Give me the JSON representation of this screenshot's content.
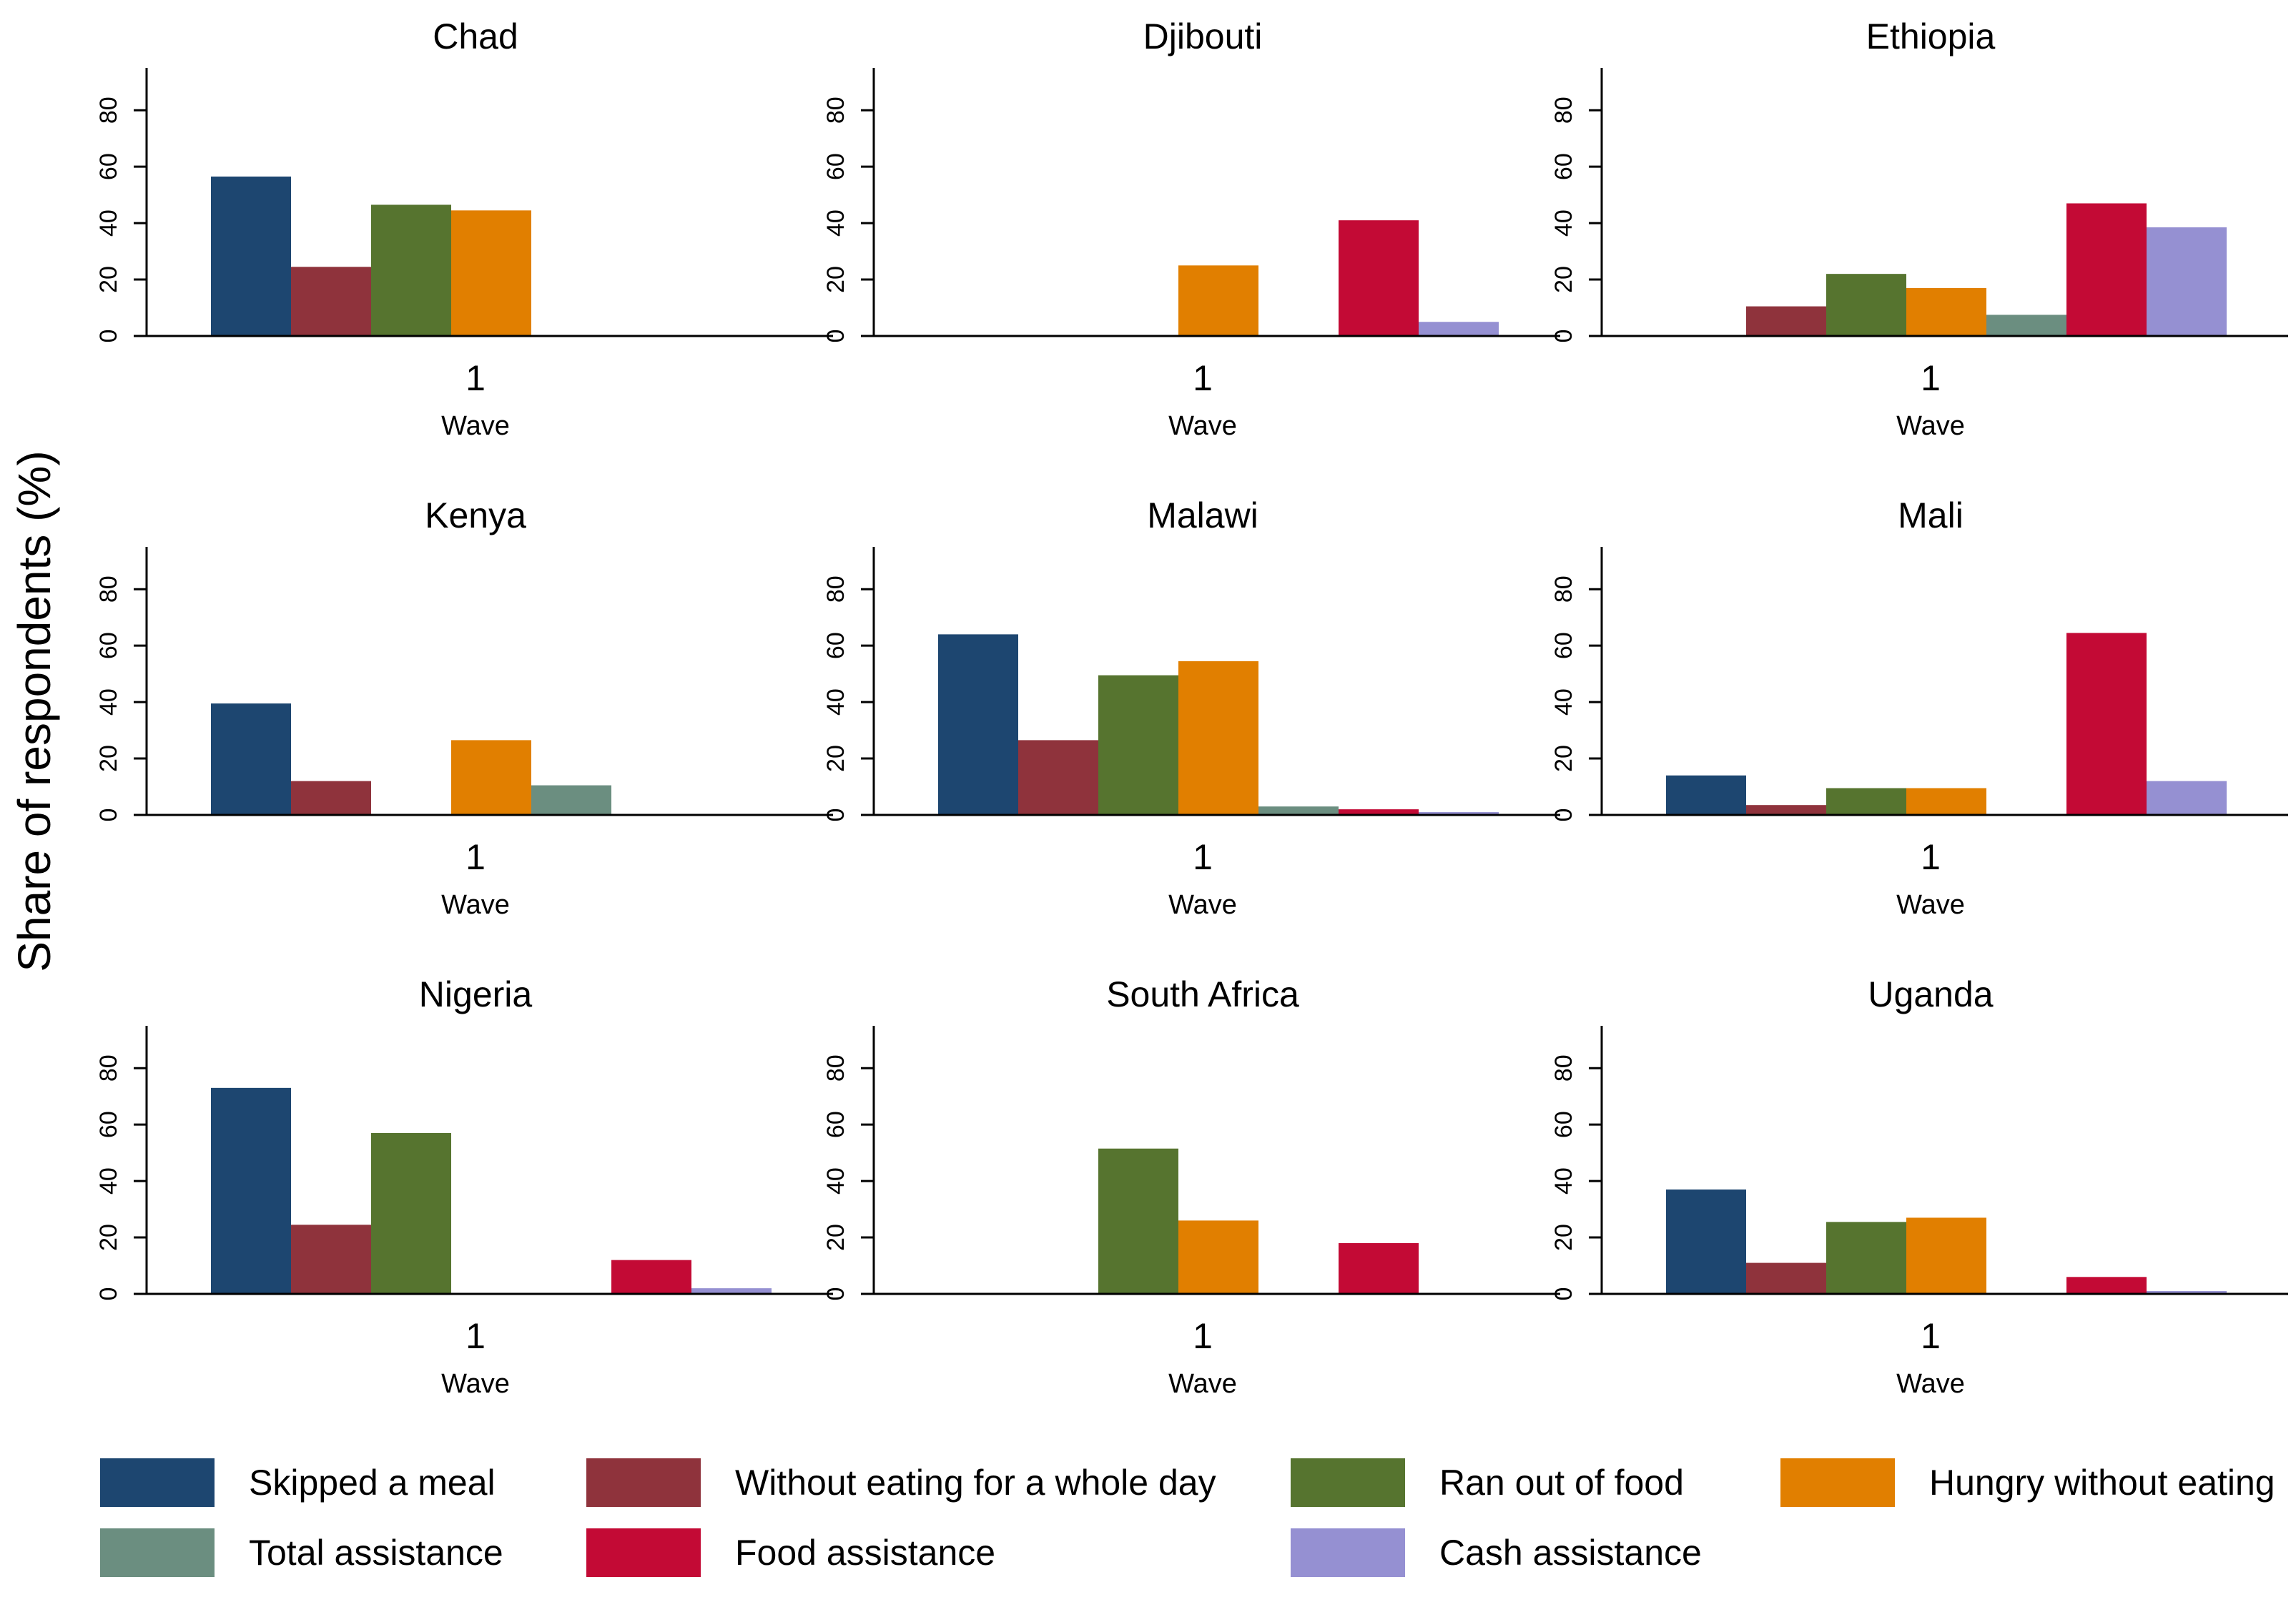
{
  "chart_data": {
    "type": "bar",
    "ylabel": "Share of respondents (%)",
    "xlabel": "Wave",
    "x_tick": "1",
    "ylim": [
      0,
      95
    ],
    "yticks": [
      "0",
      "20",
      "40",
      "60",
      "80"
    ],
    "grid": false,
    "legend_position": "bottom",
    "series": [
      {
        "name": "Skipped a meal",
        "color": "#1d4670"
      },
      {
        "name": "Without eating for a whole day",
        "color": "#8f333c"
      },
      {
        "name": "Ran out of food",
        "color": "#56742f"
      },
      {
        "name": "Hungry without eating",
        "color": "#e17f00"
      },
      {
        "name": "Total assistance",
        "color": "#6b8e80"
      },
      {
        "name": "Food assistance",
        "color": "#c30a35"
      },
      {
        "name": "Cash assistance",
        "color": "#9590d2"
      }
    ],
    "panels": [
      {
        "title": "Chad",
        "values": [
          56.5,
          24.5,
          46.5,
          44.5,
          null,
          null,
          null
        ]
      },
      {
        "title": "Djibouti",
        "values": [
          null,
          null,
          null,
          25,
          null,
          41,
          5
        ]
      },
      {
        "title": "Ethiopia",
        "values": [
          null,
          10.5,
          22,
          17,
          7.5,
          47,
          38.5
        ]
      },
      {
        "title": "Kenya",
        "values": [
          39.5,
          12,
          null,
          26.5,
          10.5,
          null,
          null
        ]
      },
      {
        "title": "Malawi",
        "values": [
          64,
          26.5,
          49.5,
          54.5,
          3,
          2,
          1
        ]
      },
      {
        "title": "Mali",
        "values": [
          14,
          3.5,
          9.5,
          9.5,
          null,
          64.5,
          12
        ]
      },
      {
        "title": "Nigeria",
        "values": [
          73,
          24.5,
          57,
          null,
          null,
          12,
          2
        ]
      },
      {
        "title": "South Africa",
        "values": [
          null,
          null,
          51.5,
          26,
          null,
          18,
          null
        ]
      },
      {
        "title": "Uganda",
        "values": [
          37,
          11,
          25.5,
          27,
          null,
          6,
          1
        ]
      }
    ]
  }
}
